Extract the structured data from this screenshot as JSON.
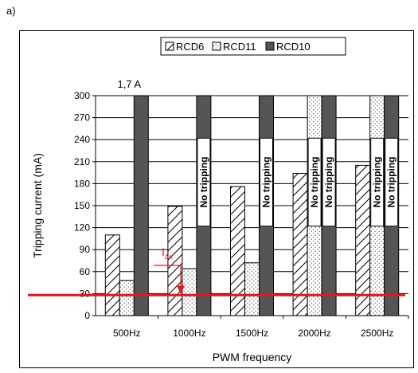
{
  "figure_label": "a)",
  "chart_data": {
    "type": "bar",
    "categories": [
      "500Hz",
      "1000Hz",
      "1500Hz",
      "2000Hz",
      "2500Hz"
    ],
    "series": [
      {
        "name": "RCD6",
        "values": [
          110,
          149,
          176,
          194,
          205
        ],
        "pattern": "hatch"
      },
      {
        "name": "RCD11",
        "values": [
          48,
          64,
          72,
          300,
          300
        ],
        "pattern": "dots",
        "no_tripping": [
          false,
          false,
          false,
          true,
          true
        ]
      },
      {
        "name": "RCD10",
        "values": [
          300,
          300,
          300,
          300,
          300
        ],
        "pattern": "solid",
        "no_tripping": [
          false,
          true,
          true,
          true,
          true
        ]
      }
    ],
    "xlabel": "PWM frequency",
    "ylabel": "Tripping current (mA)",
    "ylim": [
      0,
      300
    ],
    "yticks": [
      0,
      30,
      60,
      90,
      120,
      150,
      180,
      210,
      240,
      270,
      300
    ],
    "no_tripping_label": "No tripping",
    "no_tripping_band": [
      122,
      242
    ],
    "top_annotation": {
      "text": "1,7 A",
      "category": "500Hz"
    },
    "reference_line": {
      "value": 28,
      "label_main": "I",
      "label_sub": "Δn",
      "color": "#e8141c"
    },
    "legend_position": "top-center",
    "grid": "horizontal"
  }
}
